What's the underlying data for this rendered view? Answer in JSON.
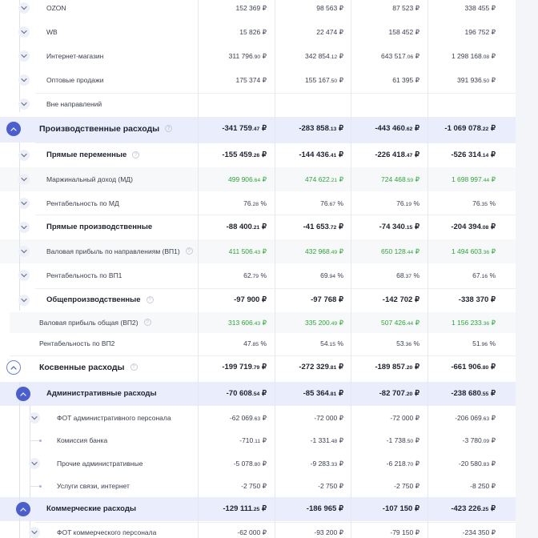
{
  "icons": {
    "expand": "chevron-down-icon",
    "collapse": "chevron-up-icon",
    "help": "question-circle-icon"
  },
  "colors": {
    "positive": "#2aa834",
    "accent": "#4a5fcf",
    "group_background": "#eaedfb",
    "alt_background": "#f7f8fa"
  },
  "rows": [
    {
      "label": "OZON",
      "values": [
        [
          "152 369",
          "₽"
        ],
        [
          "98 563",
          "₽"
        ],
        [
          "87 523",
          "₽"
        ],
        [
          "338 455",
          "₽"
        ]
      ]
    },
    {
      "label": "WB",
      "values": [
        [
          "15 826",
          "₽"
        ],
        [
          "22 474",
          "₽"
        ],
        [
          "158 452",
          "₽"
        ],
        [
          "196 752",
          "₽"
        ]
      ]
    },
    {
      "label": "Интернет-магазин",
      "values": [
        [
          "311 796",
          ".90 ₽"
        ],
        [
          "342 854",
          ".12 ₽"
        ],
        [
          "643 517",
          ".06 ₽"
        ],
        [
          "1 298 168",
          ".08 ₽"
        ]
      ]
    },
    {
      "label": "Оптовые продажи",
      "values": [
        [
          "175 374",
          "₽"
        ],
        [
          "155 167",
          ".50 ₽"
        ],
        [
          "61 395",
          "₽"
        ],
        [
          "391 936",
          ".50 ₽"
        ]
      ]
    },
    {
      "label": "Вне направлений",
      "values": []
    },
    {
      "label": "Производственные расходы",
      "values": [
        [
          "-341 759",
          ".47 ₽"
        ],
        [
          "-283 858",
          ".13 ₽"
        ],
        [
          "-443 460",
          ".62 ₽"
        ],
        [
          "-1 069 078",
          ".22 ₽"
        ]
      ]
    },
    {
      "label": "Прямые переменные",
      "values": [
        [
          "-155 459",
          ".26 ₽"
        ],
        [
          "-144 436",
          ".41 ₽"
        ],
        [
          "-226 418",
          ".47 ₽"
        ],
        [
          "-526 314",
          ".14 ₽"
        ]
      ]
    },
    {
      "label": "Маржинальный доход (МД)",
      "values": [
        [
          "499 906",
          ".64 ₽"
        ],
        [
          "474 622",
          ".21 ₽"
        ],
        [
          "724 468",
          ".59 ₽"
        ],
        [
          "1 698 997",
          ".44 ₽"
        ]
      ]
    },
    {
      "label": "Рентабельность по МД",
      "values": [
        [
          "76",
          ".28 %"
        ],
        [
          "76",
          ".67 %"
        ],
        [
          "76",
          ".19 %"
        ],
        [
          "76",
          ".35 %"
        ]
      ]
    },
    {
      "label": "Прямые производственные",
      "values": [
        [
          "-88 400",
          ".21 ₽"
        ],
        [
          "-41 653",
          ".72 ₽"
        ],
        [
          "-74 340",
          ".15 ₽"
        ],
        [
          "-204 394",
          ".08 ₽"
        ]
      ]
    },
    {
      "label": "Валовая прибыль по направлениям (ВП1)",
      "values": [
        [
          "411 506",
          ".43 ₽"
        ],
        [
          "432 968",
          ".49 ₽"
        ],
        [
          "650 128",
          ".44 ₽"
        ],
        [
          "1 494 603",
          ".36 ₽"
        ]
      ]
    },
    {
      "label": "Рентабельность по ВП1",
      "values": [
        [
          "62",
          ".79 %"
        ],
        [
          "69",
          ".94 %"
        ],
        [
          "68",
          ".37 %"
        ],
        [
          "67",
          ".16 %"
        ]
      ]
    },
    {
      "label": "Общепроизводственные",
      "values": [
        [
          "-97 900",
          "₽"
        ],
        [
          "-97 768",
          "₽"
        ],
        [
          "-142 702",
          "₽"
        ],
        [
          "-338 370",
          "₽"
        ]
      ]
    },
    {
      "label": "Валовая прибыль общая (ВП2)",
      "values": [
        [
          "313 606",
          ".43 ₽"
        ],
        [
          "335 200",
          ".49 ₽"
        ],
        [
          "507 426",
          ".44 ₽"
        ],
        [
          "1 156 233",
          ".36 ₽"
        ]
      ]
    },
    {
      "label": "Рентабельность по ВП2",
      "values": [
        [
          "47",
          ".85 %"
        ],
        [
          "54",
          ".15 %"
        ],
        [
          "53",
          ".36 %"
        ],
        [
          "51",
          ".96 %"
        ]
      ]
    },
    {
      "label": "Косвенные расходы",
      "values": [
        [
          "-199 719",
          ".79 ₽"
        ],
        [
          "-272 329",
          ".81 ₽"
        ],
        [
          "-189 857",
          ".20 ₽"
        ],
        [
          "-661 906",
          ".80 ₽"
        ]
      ]
    },
    {
      "label": "Административные расходы",
      "values": [
        [
          "-70 608",
          ".54 ₽"
        ],
        [
          "-85 364",
          ".81 ₽"
        ],
        [
          "-82 707",
          ".20 ₽"
        ],
        [
          "-238 680",
          ".55 ₽"
        ]
      ]
    },
    {
      "label": "ФОТ административного персонала",
      "values": [
        [
          "-62 069",
          ".63 ₽"
        ],
        [
          "-72 000",
          "₽"
        ],
        [
          "-72 000",
          "₽"
        ],
        [
          "-206 069",
          ".63 ₽"
        ]
      ]
    },
    {
      "label": "Комиссия банка",
      "values": [
        [
          "-710",
          ".11 ₽"
        ],
        [
          "-1 331",
          ".48 ₽"
        ],
        [
          "-1 738",
          ".50 ₽"
        ],
        [
          "-3 780",
          ".09 ₽"
        ]
      ]
    },
    {
      "label": "Прочие административные",
      "values": [
        [
          "-5 078",
          ".80 ₽"
        ],
        [
          "-9 283",
          ".33 ₽"
        ],
        [
          "-6 218",
          ".70 ₽"
        ],
        [
          "-20 580",
          ".83 ₽"
        ]
      ]
    },
    {
      "label": "Услуги связи, интернет",
      "values": [
        [
          "-2 750",
          "₽"
        ],
        [
          "-2 750",
          "₽"
        ],
        [
          "-2 750",
          "₽"
        ],
        [
          "-8 250",
          "₽"
        ]
      ]
    },
    {
      "label": "Коммерческие расходы",
      "values": [
        [
          "-129 111",
          ".25 ₽"
        ],
        [
          "-186 965",
          "₽"
        ],
        [
          "-107 150",
          "₽"
        ],
        [
          "-423 226",
          ".25 ₽"
        ]
      ]
    },
    {
      "label": "ФОТ коммерческого персонала",
      "values": [
        [
          "-62 000",
          "₽"
        ],
        [
          "-93 200",
          "₽"
        ],
        [
          "-79 150",
          "₽"
        ],
        [
          "-234 350",
          "₽"
        ]
      ]
    }
  ]
}
